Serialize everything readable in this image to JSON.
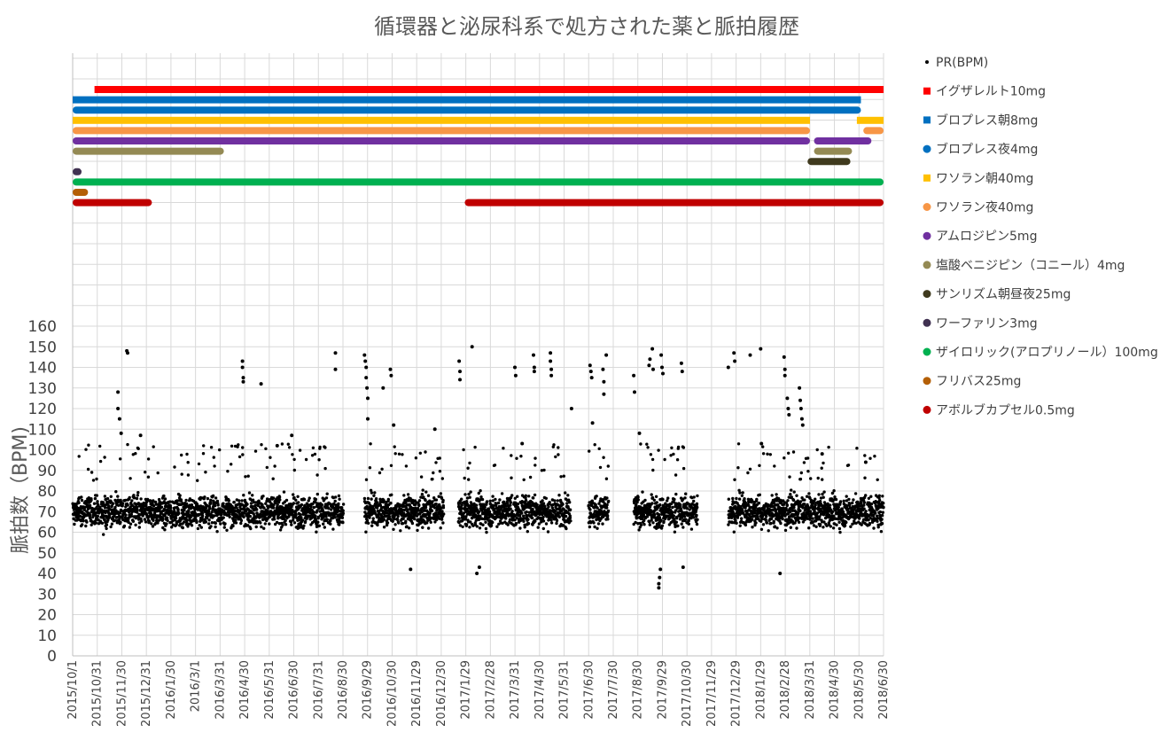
{
  "chart_data": {
    "type": "scatter",
    "title": "循環器と泌尿科系で処方された薬と脈拍履歴",
    "ylabel": "脈拍数（BPM)",
    "ylim": [
      0,
      160
    ],
    "yticks": [
      0,
      10,
      20,
      30,
      40,
      50,
      60,
      70,
      80,
      90,
      100,
      110,
      120,
      130,
      140,
      150,
      160
    ],
    "xlim": [
      "2015-10-01",
      "2018-06-30"
    ],
    "xtick_labels": [
      "2015/10/1",
      "2015/10/31",
      "2015/11/30",
      "2015/12/31",
      "2016/1/30",
      "2016/3/1",
      "2016/3/31",
      "2016/4/30",
      "2016/5/31",
      "2016/6/30",
      "2016/7/31",
      "2016/8/30",
      "2016/9/29",
      "2016/10/30",
      "2016/11/29",
      "2016/12/30",
      "2017/1/29",
      "2017/2/28",
      "2017/3/31",
      "2017/4/30",
      "2017/5/31",
      "2017/6/30",
      "2017/7/30",
      "2017/8/30",
      "2017/9/29",
      "2017/10/30",
      "2017/11/29",
      "2017/12/29",
      "2018/1/29",
      "2018/2/28",
      "2018/3/31",
      "2018/4/30",
      "2018/5/30",
      "2018/6/30"
    ],
    "grid": true,
    "legend_position": "right",
    "pulse_series": {
      "name": "PR(BPM)",
      "color": "#000000",
      "typical_range": [
        55,
        85
      ],
      "active_periods": [
        [
          "2015-10-01",
          "2016-08-31"
        ],
        [
          "2016-09-26",
          "2017-01-02"
        ],
        [
          "2017-01-20",
          "2017-06-08"
        ],
        [
          "2017-06-30",
          "2017-07-25"
        ],
        [
          "2017-08-25",
          "2017-11-12"
        ],
        [
          "2017-12-20",
          "2018-06-30"
        ]
      ],
      "outliers": [
        [
          "2015-11-26",
          128
        ],
        [
          "2015-11-26",
          120
        ],
        [
          "2015-11-28",
          115
        ],
        [
          "2015-11-30",
          108
        ],
        [
          "2015-12-07",
          148
        ],
        [
          "2015-12-08",
          147
        ],
        [
          "2015-12-24",
          107
        ],
        [
          "2016-04-28",
          143
        ],
        [
          "2016-04-28",
          140
        ],
        [
          "2016-04-29",
          135
        ],
        [
          "2016-04-29",
          133
        ],
        [
          "2016-05-21",
          132
        ],
        [
          "2016-06-10",
          102
        ],
        [
          "2016-06-28",
          107
        ],
        [
          "2016-08-21",
          147
        ],
        [
          "2016-08-21",
          139
        ],
        [
          "2016-09-26",
          146
        ],
        [
          "2016-09-27",
          143
        ],
        [
          "2016-09-28",
          140
        ],
        [
          "2016-09-28",
          135
        ],
        [
          "2016-09-29",
          130
        ],
        [
          "2016-09-30",
          125
        ],
        [
          "2016-09-30",
          115
        ],
        [
          "2016-10-19",
          130
        ],
        [
          "2016-10-28",
          139
        ],
        [
          "2016-10-29",
          136
        ],
        [
          "2016-11-01",
          112
        ],
        [
          "2016-11-22",
          42
        ],
        [
          "2016-12-22",
          110
        ],
        [
          "2017-01-21",
          143
        ],
        [
          "2017-01-22",
          138
        ],
        [
          "2017-01-22",
          134
        ],
        [
          "2017-02-06",
          150
        ],
        [
          "2017-02-12",
          40
        ],
        [
          "2017-02-15",
          43
        ],
        [
          "2017-03-31",
          140
        ],
        [
          "2017-04-01",
          136
        ],
        [
          "2017-04-09",
          103
        ],
        [
          "2017-04-23",
          146
        ],
        [
          "2017-04-24",
          140
        ],
        [
          "2017-04-24",
          138
        ],
        [
          "2017-05-14",
          147
        ],
        [
          "2017-05-14",
          143
        ],
        [
          "2017-05-15",
          139
        ],
        [
          "2017-05-15",
          136
        ],
        [
          "2017-06-09",
          120
        ],
        [
          "2017-07-02",
          141
        ],
        [
          "2017-07-03",
          138
        ],
        [
          "2017-07-04",
          135
        ],
        [
          "2017-07-05",
          113
        ],
        [
          "2017-07-18",
          139
        ],
        [
          "2017-07-19",
          133
        ],
        [
          "2017-07-19",
          127
        ],
        [
          "2017-07-22",
          146
        ],
        [
          "2017-08-25",
          136
        ],
        [
          "2017-08-26",
          128
        ],
        [
          "2017-09-01",
          108
        ],
        [
          "2017-09-13",
          141
        ],
        [
          "2017-09-14",
          144
        ],
        [
          "2017-09-17",
          149
        ],
        [
          "2017-09-18",
          139
        ],
        [
          "2017-09-25",
          35
        ],
        [
          "2017-09-25",
          33
        ],
        [
          "2017-09-26",
          38
        ],
        [
          "2017-09-27",
          42
        ],
        [
          "2017-09-28",
          146
        ],
        [
          "2017-09-29",
          140
        ],
        [
          "2017-09-30",
          137
        ],
        [
          "2017-10-23",
          142
        ],
        [
          "2017-10-24",
          138
        ],
        [
          "2017-10-25",
          43
        ],
        [
          "2017-12-20",
          140
        ],
        [
          "2017-12-27",
          147
        ],
        [
          "2017-12-28",
          143
        ],
        [
          "2018-01-16",
          146
        ],
        [
          "2018-01-29",
          149
        ],
        [
          "2018-01-30",
          103
        ],
        [
          "2018-02-22",
          40
        ],
        [
          "2018-02-27",
          145
        ],
        [
          "2018-02-28",
          139
        ],
        [
          "2018-02-28",
          136
        ],
        [
          "2018-03-03",
          125
        ],
        [
          "2018-03-04",
          120
        ],
        [
          "2018-03-05",
          117
        ],
        [
          "2018-03-18",
          130
        ],
        [
          "2018-03-19",
          124
        ],
        [
          "2018-03-20",
          120
        ],
        [
          "2018-03-21",
          115
        ],
        [
          "2018-03-22",
          112
        ],
        [
          "2018-04-15",
          98
        ],
        [
          "2018-06-08",
          94
        ]
      ]
    },
    "medications": [
      {
        "name": "イグザレルト10mg",
        "color": "#ff0000",
        "marker": "square",
        "periods": [
          [
            "2015-10-28",
            "2018-06-30"
          ]
        ]
      },
      {
        "name": "ブロプレス朝8mg",
        "color": "#0070c0",
        "marker": "square",
        "periods": [
          [
            "2015-10-01",
            "2018-06-02"
          ]
        ]
      },
      {
        "name": "ブロプレス夜4mg",
        "color": "#0070c0",
        "marker": "circle",
        "periods": [
          [
            "2015-10-01",
            "2018-06-02"
          ]
        ]
      },
      {
        "name": "ワソラン朝40mg",
        "color": "#ffc000",
        "marker": "square",
        "periods": [
          [
            "2015-10-01",
            "2018-03-31"
          ],
          [
            "2018-05-28",
            "2018-06-30"
          ]
        ]
      },
      {
        "name": "ワソラン夜40mg",
        "color": "#f79646",
        "marker": "circle",
        "periods": [
          [
            "2015-10-01",
            "2018-03-31"
          ],
          [
            "2018-06-05",
            "2018-06-30"
          ]
        ]
      },
      {
        "name": "アムロジピン5mg",
        "color": "#7030a0",
        "marker": "circle",
        "periods": [
          [
            "2015-10-01",
            "2018-03-31"
          ],
          [
            "2018-04-05",
            "2018-06-15"
          ]
        ]
      },
      {
        "name": "塩酸ベニジピン（コニール）4mg",
        "color": "#948a54",
        "marker": "circle",
        "periods": [
          [
            "2015-10-01",
            "2016-04-05"
          ],
          [
            "2018-04-05",
            "2018-05-22"
          ]
        ]
      },
      {
        "name": "サンリズム朝昼夜25mg",
        "color": "#3f3a1e",
        "marker": "circle",
        "periods": [
          [
            "2018-03-28",
            "2018-05-20"
          ]
        ]
      },
      {
        "name": "ワーファリン3mg",
        "color": "#403151",
        "marker": "circle",
        "periods": [
          [
            "2015-10-01",
            "2015-10-12"
          ]
        ]
      },
      {
        "name": "ザイロリック(アロプリノール）100mg",
        "color": "#00b050",
        "marker": "circle",
        "periods": [
          [
            "2015-10-01",
            "2018-06-30"
          ]
        ]
      },
      {
        "name": "フリバス25mg",
        "color": "#b45f06",
        "marker": "circle",
        "periods": [
          [
            "2015-10-01",
            "2015-10-20"
          ]
        ]
      },
      {
        "name": "アボルブカプセル0.5mg",
        "color": "#c00000",
        "marker": "circle",
        "periods": [
          [
            "2015-10-01",
            "2016-01-07"
          ],
          [
            "2017-01-28",
            "2018-06-30"
          ]
        ]
      }
    ]
  }
}
